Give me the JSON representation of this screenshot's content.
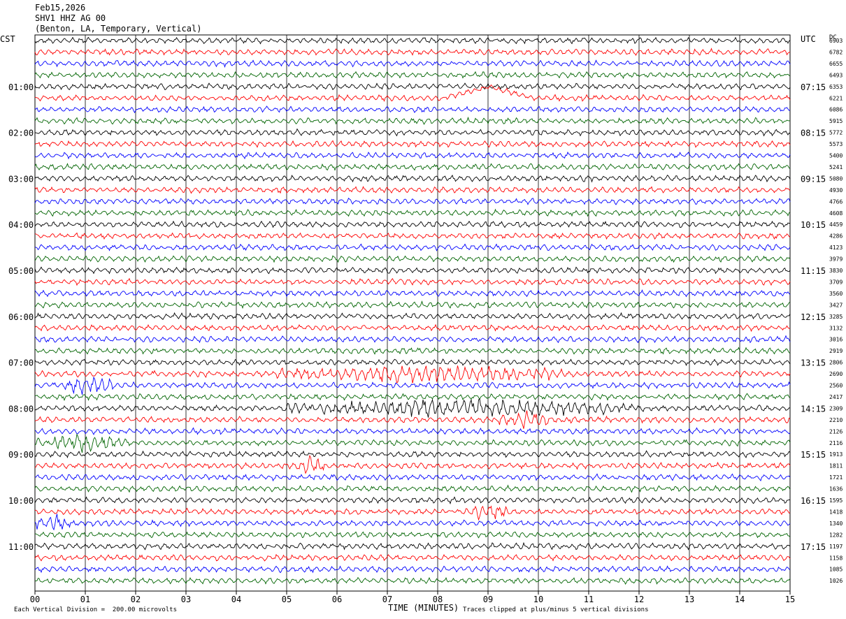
{
  "header": {
    "date": "Feb15,2026",
    "station": "SHV1 HHZ AG 00",
    "location": "(Benton, LA, Temporary, Vertical)"
  },
  "left_tz": "CST",
  "right_tz": "UTC",
  "dc_label": "DC",
  "footer": {
    "scale": "Each Vertical Division =  200.00 microvolts",
    "clip": "Traces clipped at plus/minus 5 vertical divisions"
  },
  "chart_data": {
    "type": "line",
    "title": "",
    "xlabel": "TIME (MINUTES)",
    "ylabel": "",
    "x_ticks": [
      "00",
      "01",
      "02",
      "03",
      "04",
      "05",
      "06",
      "07",
      "08",
      "09",
      "10",
      "11",
      "12",
      "13",
      "14",
      "15"
    ],
    "xlim": [
      0,
      15
    ],
    "rows": 48,
    "minutes_per_row": 15,
    "trace_colors": [
      "#000000",
      "#ff0000",
      "#0000ff",
      "#006400"
    ],
    "left_time_labels": [
      "01:00",
      "02:00",
      "03:00",
      "04:00",
      "05:00",
      "06:00",
      "07:00",
      "08:00",
      "09:00",
      "10:00",
      "11:00"
    ],
    "right_time_labels": [
      "07:15",
      "08:15",
      "09:15",
      "10:15",
      "11:15",
      "12:15",
      "13:15",
      "14:15",
      "15:15",
      "16:15",
      "17:15"
    ],
    "dc_offsets": [
      "6903",
      "6782",
      "6655",
      "6493",
      "6353",
      "6221",
      "6086",
      "5915",
      "5772",
      "5573",
      "5400",
      "5241",
      "5080",
      "4930",
      "4766",
      "4608",
      "4459",
      "4286",
      "4123",
      "3979",
      "3830",
      "3709",
      "3560",
      "3427",
      "3285",
      "3132",
      "3016",
      "2919",
      "2806",
      "2690",
      "2560",
      "2417",
      "2309",
      "2210",
      "2126",
      "2116",
      "1913",
      "1811",
      "1721",
      "1636",
      "1595",
      "1418",
      "1340",
      "1282",
      "1197",
      "1158",
      "1085",
      "1026"
    ],
    "grid": true,
    "events": [
      {
        "row": 5,
        "start_min": 8.1,
        "end_min": 9.9,
        "note": "long-period bump"
      },
      {
        "row": 29,
        "start_min": 4.8,
        "end_min": 10.5
      },
      {
        "row": 30,
        "start_min": 0.6,
        "end_min": 1.6
      },
      {
        "row": 32,
        "start_min": 5.0,
        "end_min": 12.0
      },
      {
        "row": 33,
        "start_min": 9.2,
        "end_min": 10.2
      },
      {
        "row": 35,
        "start_min": 0.0,
        "end_min": 1.8
      },
      {
        "row": 37,
        "start_min": 5.2,
        "end_min": 5.8
      },
      {
        "row": 41,
        "start_min": 8.5,
        "end_min": 9.4
      },
      {
        "row": 42,
        "start_min": 0.0,
        "end_min": 0.7
      }
    ]
  }
}
